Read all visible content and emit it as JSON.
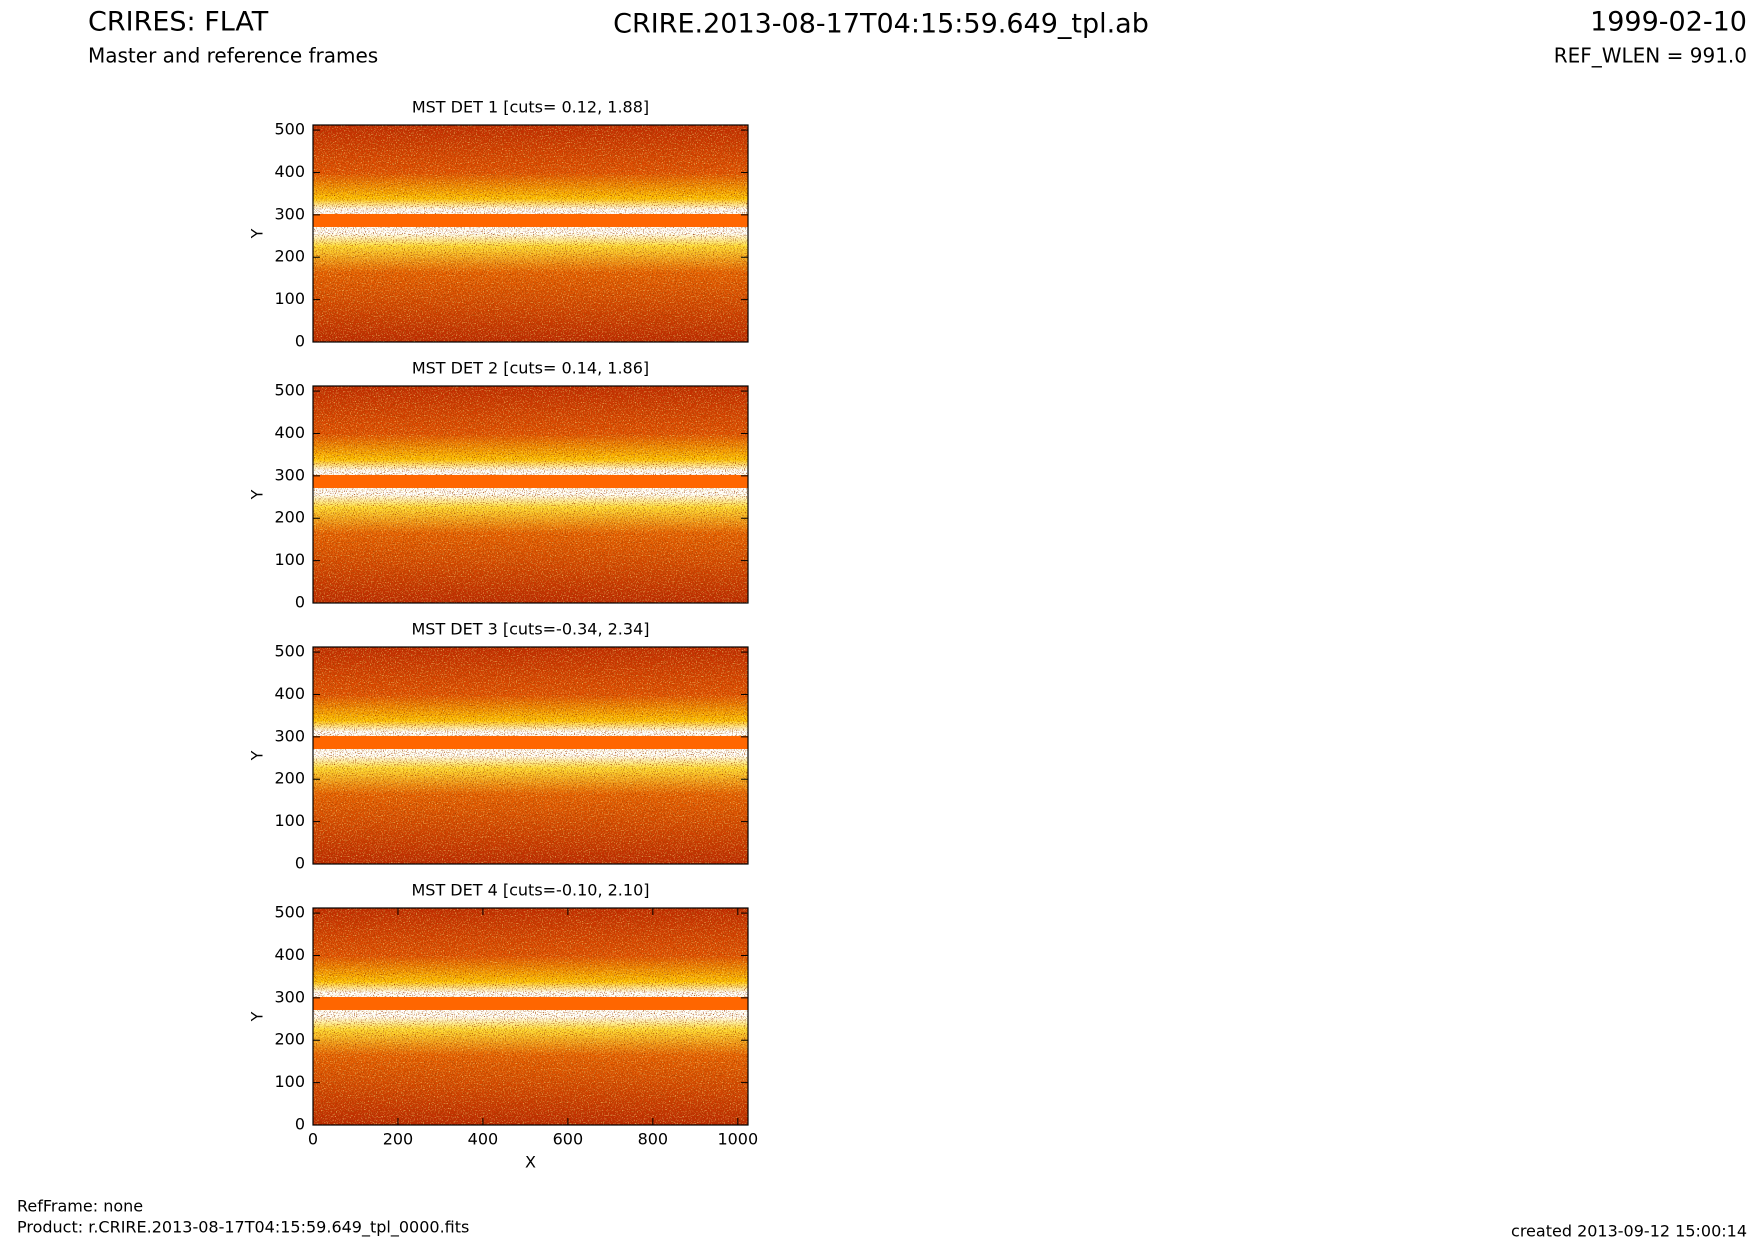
{
  "header": {
    "title": "CRIRES: FLAT",
    "subtitle": "Master and reference frames",
    "file": "CRIRE.2013-08-17T04:15:59.649_tpl.ab",
    "date": "1999-02-10",
    "ref_wlen": "REF_WLEN = 991.0"
  },
  "footer": {
    "refframe": "RefFrame: none",
    "product": "Product: r.CRIRE.2013-08-17T04:15:59.649_tpl_0000.fits",
    "created": "created 2013-09-12 15:00:14"
  },
  "chart_data": [
    {
      "type": "image",
      "title": "MST DET 1 [cuts= 0.12, 1.88]",
      "ylabel": "Y",
      "xlim": [
        0,
        1024
      ],
      "ylim": [
        0,
        512
      ],
      "yticks": [
        0,
        100,
        200,
        300,
        400,
        500
      ]
    },
    {
      "type": "image",
      "title": "MST DET 2 [cuts= 0.14, 1.86]",
      "ylabel": "Y",
      "xlim": [
        0,
        1024
      ],
      "ylim": [
        0,
        512
      ],
      "yticks": [
        0,
        100,
        200,
        300,
        400,
        500
      ]
    },
    {
      "type": "image",
      "title": "MST DET 3 [cuts=-0.34, 2.34]",
      "ylabel": "Y",
      "xlim": [
        0,
        1024
      ],
      "ylim": [
        0,
        512
      ],
      "yticks": [
        0,
        100,
        200,
        300,
        400,
        500
      ]
    },
    {
      "type": "image",
      "title": "MST DET 4 [cuts=-0.10, 2.10]",
      "ylabel": "Y",
      "xlabel": "X",
      "xlim": [
        0,
        1024
      ],
      "ylim": [
        0,
        512
      ],
      "yticks": [
        0,
        100,
        200,
        300,
        400,
        500
      ],
      "xticks": [
        0,
        200,
        400,
        600,
        800,
        1000
      ]
    }
  ]
}
